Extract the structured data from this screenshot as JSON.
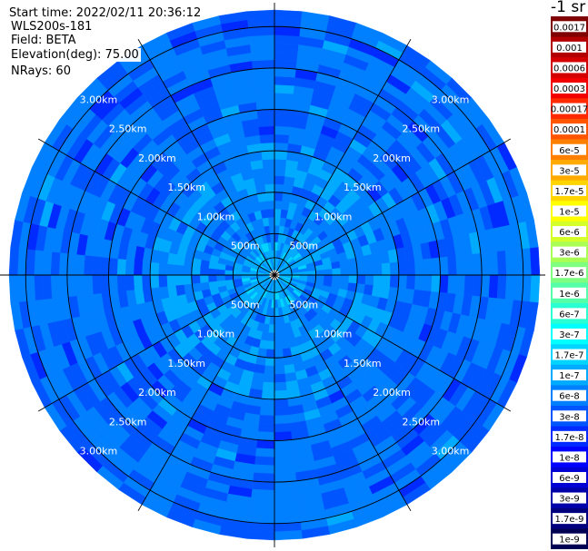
{
  "header": {
    "start_time": "Start time: 2022/02/11 20:36:12",
    "instrument": "WLS200s-181",
    "field": "Field: BETA",
    "elevation": "Elevation(deg): 75.00",
    "nrays": "NRays: 60"
  },
  "colorbar": {
    "units": "-1 sr",
    "entries": [
      {
        "label": "0.0017",
        "color": "#7f0000"
      },
      {
        "label": "0.001",
        "color": "#b20000"
      },
      {
        "label": "0.0006",
        "color": "#d40000"
      },
      {
        "label": "0.0003",
        "color": "#f20000"
      },
      {
        "label": "0.00017",
        "color": "#ff2a00"
      },
      {
        "label": "0.0001",
        "color": "#ff5500"
      },
      {
        "label": "6e-5",
        "color": "#ff7f00"
      },
      {
        "label": "3e-5",
        "color": "#ffaa00"
      },
      {
        "label": "1.7e-5",
        "color": "#ffd400"
      },
      {
        "label": "1e-5",
        "color": "#ffff00"
      },
      {
        "label": "6e-6",
        "color": "#d4ff2a"
      },
      {
        "label": "3e-6",
        "color": "#aaff55"
      },
      {
        "label": "1.7e-6",
        "color": "#7fff7f"
      },
      {
        "label": "1e-6",
        "color": "#55ffaa"
      },
      {
        "label": "6e-7",
        "color": "#2affd4"
      },
      {
        "label": "3e-7",
        "color": "#00ffff"
      },
      {
        "label": "1.7e-7",
        "color": "#00d4ff"
      },
      {
        "label": "1e-7",
        "color": "#00aaff"
      },
      {
        "label": "6e-8",
        "color": "#007fff"
      },
      {
        "label": "3e-8",
        "color": "#0055ff"
      },
      {
        "label": "1.7e-8",
        "color": "#002aff"
      },
      {
        "label": "1e-8",
        "color": "#0000ff"
      },
      {
        "label": "6e-9",
        "color": "#0000d4"
      },
      {
        "label": "3e-9",
        "color": "#0000aa"
      },
      {
        "label": "1.7e-9",
        "color": "#00007f"
      },
      {
        "label": "1e-9",
        "color": "#000055"
      }
    ]
  },
  "chart_data": {
    "type": "heatmap",
    "projection": "polar (PPI scan)",
    "field": "BETA",
    "units": "-1 sr",
    "range_rings": [
      "500m",
      "1.00km",
      "1.50km",
      "2.00km",
      "2.50km",
      "3.00km"
    ],
    "range_ring_values_km": [
      0.5,
      1.0,
      1.5,
      2.0,
      2.5,
      3.0
    ],
    "max_range_km": 3.2,
    "spoke_angles_deg": [
      0,
      30,
      60,
      90,
      120,
      150,
      180,
      210,
      240,
      270,
      300,
      330
    ],
    "nrays": 60,
    "gates_per_ray": 32,
    "value_bands": [
      {
        "range_km": [
          0.05,
          0.45
        ],
        "typical": "1e-7 to 1.7e-7"
      },
      {
        "range_km": [
          0.45,
          1.5
        ],
        "typical": "6e-8 to 1e-7"
      },
      {
        "range_km": [
          1.5,
          3.2
        ],
        "typical": "1.7e-8 to 6e-8"
      }
    ]
  }
}
